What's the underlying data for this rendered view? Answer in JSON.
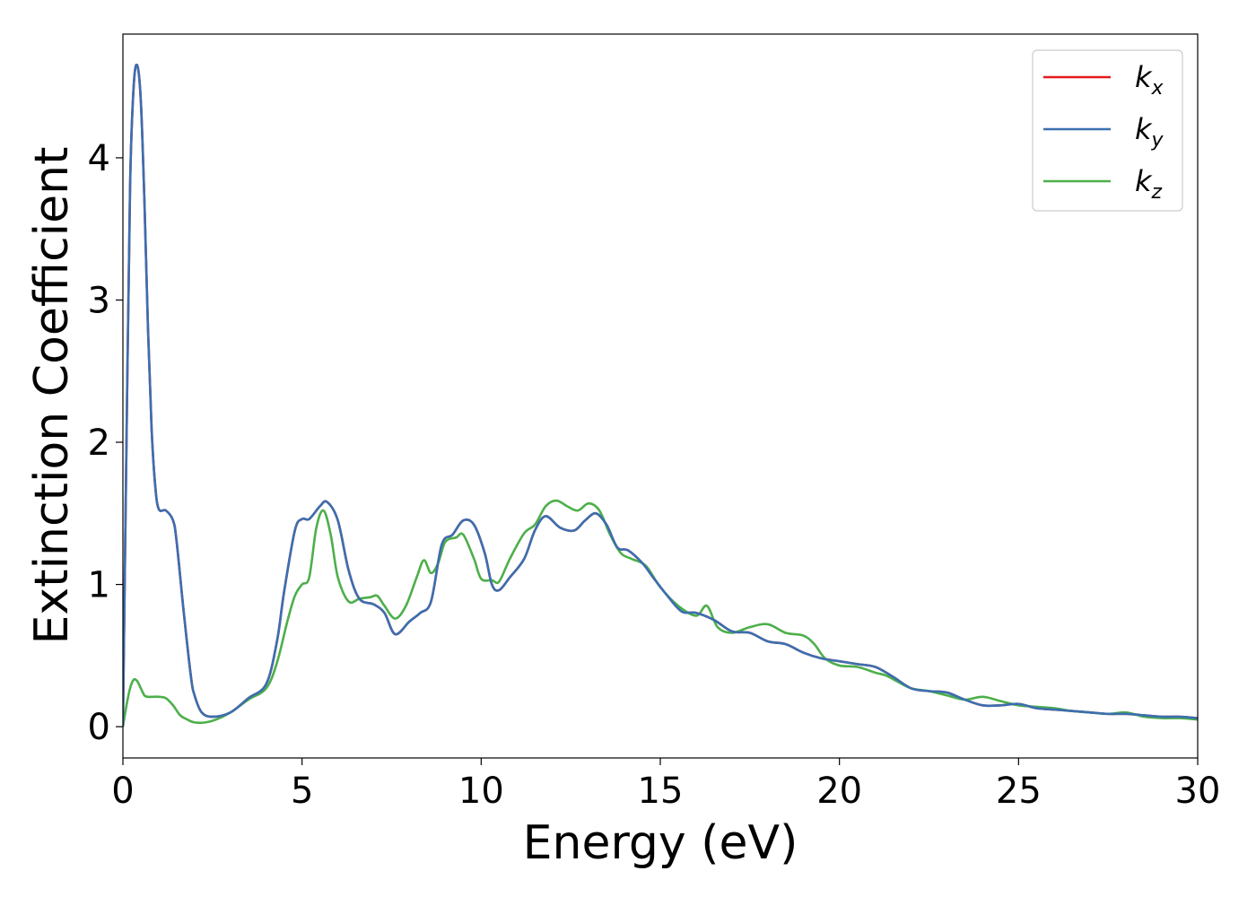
{
  "chart_data": {
    "type": "line",
    "xlabel": "Energy (eV)",
    "ylabel": "Extinction Coefficient",
    "xlim": [
      0,
      30
    ],
    "ylim": [
      -0.22,
      4.87
    ],
    "xticks": [
      0,
      5,
      10,
      15,
      20,
      25,
      30
    ],
    "yticks": [
      0,
      1,
      2,
      3,
      4
    ],
    "grid": false,
    "legend_position": "top-right",
    "series": [
      {
        "name": "k_x",
        "legend_base": "k",
        "legend_sub": "x",
        "color": "#e41a1c",
        "x": [
          0,
          0.1,
          0.2,
          0.3,
          0.4,
          0.5,
          0.6,
          0.7,
          0.8,
          0.9,
          1.0,
          1.2,
          1.4,
          1.5,
          1.7,
          1.9,
          2.0,
          2.2,
          2.5,
          3.0,
          3.5,
          4.0,
          4.3,
          4.5,
          4.8,
          5.0,
          5.2,
          5.5,
          5.7,
          6.0,
          6.3,
          6.6,
          7.0,
          7.3,
          7.6,
          8.0,
          8.3,
          8.6,
          8.9,
          9.2,
          9.5,
          9.8,
          10.1,
          10.3,
          10.5,
          10.8,
          11.2,
          11.5,
          11.8,
          12.2,
          12.6,
          12.9,
          13.2,
          13.5,
          13.8,
          14.1,
          14.5,
          14.8,
          15.2,
          15.6,
          16.0,
          16.5,
          17.0,
          17.5,
          18.0,
          18.5,
          19.0,
          19.5,
          20.0,
          20.5,
          21.0,
          21.5,
          22.0,
          22.5,
          23.0,
          23.5,
          24.0,
          24.5,
          25.0,
          25.5,
          26.0,
          26.5,
          27.0,
          27.5,
          28.0,
          28.5,
          29.0,
          29.5,
          30.0
        ],
        "y": [
          0.0,
          2.0,
          3.8,
          4.5,
          4.65,
          4.4,
          3.7,
          2.8,
          2.1,
          1.7,
          1.53,
          1.52,
          1.45,
          1.3,
          0.8,
          0.35,
          0.22,
          0.1,
          0.07,
          0.1,
          0.2,
          0.3,
          0.6,
          0.95,
          1.38,
          1.46,
          1.46,
          1.55,
          1.58,
          1.45,
          1.1,
          0.9,
          0.86,
          0.8,
          0.65,
          0.74,
          0.8,
          0.88,
          1.28,
          1.35,
          1.45,
          1.42,
          1.22,
          1.0,
          0.96,
          1.05,
          1.18,
          1.38,
          1.48,
          1.4,
          1.38,
          1.45,
          1.5,
          1.42,
          1.26,
          1.24,
          1.15,
          1.05,
          0.92,
          0.81,
          0.8,
          0.75,
          0.67,
          0.66,
          0.6,
          0.58,
          0.52,
          0.48,
          0.46,
          0.44,
          0.42,
          0.35,
          0.27,
          0.25,
          0.24,
          0.19,
          0.15,
          0.15,
          0.16,
          0.13,
          0.12,
          0.11,
          0.1,
          0.09,
          0.09,
          0.08,
          0.07,
          0.07,
          0.06
        ]
      },
      {
        "name": "k_y",
        "legend_base": "k",
        "legend_sub": "y",
        "color": "#3a6fb0",
        "x": [
          0,
          0.1,
          0.2,
          0.3,
          0.4,
          0.5,
          0.6,
          0.7,
          0.8,
          0.9,
          1.0,
          1.2,
          1.4,
          1.5,
          1.7,
          1.9,
          2.0,
          2.2,
          2.5,
          3.0,
          3.5,
          4.0,
          4.3,
          4.5,
          4.8,
          5.0,
          5.2,
          5.5,
          5.7,
          6.0,
          6.3,
          6.6,
          7.0,
          7.3,
          7.6,
          8.0,
          8.3,
          8.6,
          8.9,
          9.2,
          9.5,
          9.8,
          10.1,
          10.3,
          10.5,
          10.8,
          11.2,
          11.5,
          11.8,
          12.2,
          12.6,
          12.9,
          13.2,
          13.5,
          13.8,
          14.1,
          14.5,
          14.8,
          15.2,
          15.6,
          16.0,
          16.5,
          17.0,
          17.5,
          18.0,
          18.5,
          19.0,
          19.5,
          20.0,
          20.5,
          21.0,
          21.5,
          22.0,
          22.5,
          23.0,
          23.5,
          24.0,
          24.5,
          25.0,
          25.5,
          26.0,
          26.5,
          27.0,
          27.5,
          28.0,
          28.5,
          29.0,
          29.5,
          30.0
        ],
        "y": [
          0.0,
          2.0,
          3.8,
          4.5,
          4.65,
          4.4,
          3.7,
          2.8,
          2.1,
          1.7,
          1.53,
          1.52,
          1.45,
          1.3,
          0.8,
          0.35,
          0.22,
          0.1,
          0.07,
          0.1,
          0.2,
          0.3,
          0.6,
          0.95,
          1.38,
          1.46,
          1.46,
          1.55,
          1.58,
          1.45,
          1.1,
          0.9,
          0.86,
          0.8,
          0.65,
          0.74,
          0.8,
          0.88,
          1.28,
          1.35,
          1.45,
          1.42,
          1.22,
          1.0,
          0.96,
          1.05,
          1.18,
          1.38,
          1.48,
          1.4,
          1.38,
          1.45,
          1.5,
          1.42,
          1.26,
          1.24,
          1.15,
          1.05,
          0.92,
          0.81,
          0.8,
          0.75,
          0.67,
          0.66,
          0.6,
          0.58,
          0.52,
          0.48,
          0.46,
          0.44,
          0.42,
          0.35,
          0.27,
          0.25,
          0.24,
          0.19,
          0.15,
          0.15,
          0.16,
          0.13,
          0.12,
          0.11,
          0.1,
          0.09,
          0.09,
          0.08,
          0.07,
          0.07,
          0.06
        ]
      },
      {
        "name": "k_z",
        "legend_base": "k",
        "legend_sub": "z",
        "color": "#4daf4a",
        "x": [
          0,
          0.1,
          0.2,
          0.3,
          0.4,
          0.5,
          0.6,
          0.7,
          0.8,
          1.0,
          1.2,
          1.4,
          1.6,
          1.8,
          2.0,
          2.3,
          2.6,
          3.0,
          3.5,
          4.0,
          4.3,
          4.6,
          4.8,
          5.0,
          5.2,
          5.4,
          5.6,
          5.8,
          6.0,
          6.3,
          6.6,
          6.9,
          7.1,
          7.3,
          7.6,
          7.9,
          8.2,
          8.4,
          8.6,
          8.8,
          9.0,
          9.3,
          9.5,
          9.8,
          10.0,
          10.3,
          10.5,
          10.8,
          11.2,
          11.5,
          11.8,
          12.1,
          12.4,
          12.7,
          13.0,
          13.3,
          13.6,
          13.9,
          14.2,
          14.6,
          15.0,
          15.5,
          16.0,
          16.3,
          16.6,
          17.0,
          17.5,
          18.0,
          18.5,
          19.0,
          19.3,
          19.6,
          20.0,
          20.5,
          21.0,
          21.3,
          21.6,
          22.0,
          22.5,
          23.0,
          23.5,
          24.0,
          24.5,
          25.0,
          25.5,
          26.0,
          26.5,
          27.0,
          27.5,
          28.0,
          28.5,
          29.0,
          29.5,
          30.0
        ],
        "y": [
          0.0,
          0.15,
          0.27,
          0.33,
          0.32,
          0.27,
          0.22,
          0.21,
          0.21,
          0.21,
          0.2,
          0.15,
          0.08,
          0.05,
          0.03,
          0.03,
          0.05,
          0.1,
          0.19,
          0.27,
          0.45,
          0.75,
          0.92,
          1.0,
          1.05,
          1.4,
          1.52,
          1.35,
          1.05,
          0.88,
          0.9,
          0.91,
          0.92,
          0.85,
          0.76,
          0.85,
          1.05,
          1.17,
          1.08,
          1.15,
          1.3,
          1.33,
          1.35,
          1.18,
          1.04,
          1.03,
          1.02,
          1.18,
          1.36,
          1.42,
          1.55,
          1.59,
          1.55,
          1.52,
          1.57,
          1.52,
          1.35,
          1.22,
          1.18,
          1.13,
          0.98,
          0.85,
          0.78,
          0.85,
          0.7,
          0.66,
          0.7,
          0.72,
          0.66,
          0.64,
          0.58,
          0.48,
          0.43,
          0.42,
          0.38,
          0.36,
          0.32,
          0.27,
          0.25,
          0.22,
          0.19,
          0.21,
          0.18,
          0.15,
          0.14,
          0.13,
          0.11,
          0.1,
          0.09,
          0.1,
          0.07,
          0.06,
          0.06,
          0.05
        ]
      }
    ]
  }
}
